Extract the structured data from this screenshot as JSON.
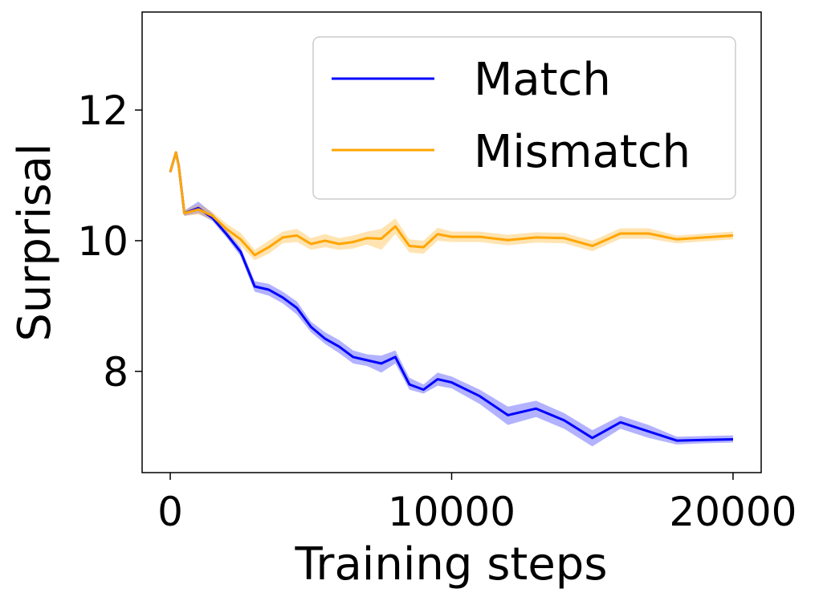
{
  "chart_data": {
    "type": "line",
    "xlabel": "Training steps",
    "ylabel": "Surprisal",
    "xlim": [
      -1000,
      21000
    ],
    "ylim": [
      6.45,
      13.5
    ],
    "xticks": [
      0,
      10000,
      20000
    ],
    "xtick_labels": [
      "0",
      "10000",
      "20000"
    ],
    "yticks": [
      8,
      10,
      12
    ],
    "ytick_labels": [
      "8",
      "10",
      "12"
    ],
    "grid": false,
    "legend_position": "top-right",
    "series": [
      {
        "name": "Match",
        "color": "#0000ff",
        "band_color": "#0000ff",
        "x": [
          0,
          200,
          300,
          500,
          1000,
          1500,
          2000,
          2500,
          3000,
          3500,
          4000,
          4500,
          5000,
          5500,
          6000,
          6500,
          7000,
          7500,
          8000,
          8500,
          9000,
          9500,
          10000,
          11000,
          12000,
          13000,
          14000,
          15000,
          16000,
          17000,
          18000,
          19000,
          20000
        ],
        "y": [
          11.05,
          11.35,
          11.15,
          10.42,
          10.5,
          10.35,
          10.1,
          9.83,
          9.3,
          9.25,
          9.13,
          8.97,
          8.68,
          8.5,
          8.38,
          8.22,
          8.17,
          8.12,
          8.22,
          7.8,
          7.72,
          7.88,
          7.83,
          7.62,
          7.33,
          7.43,
          7.25,
          6.98,
          7.22,
          7.08,
          6.94,
          6.95,
          6.96
        ],
        "lower": [
          11.05,
          11.35,
          11.15,
          10.38,
          10.42,
          10.3,
          10.05,
          9.76,
          9.22,
          9.16,
          9.04,
          8.87,
          8.6,
          8.42,
          8.28,
          8.12,
          8.08,
          7.98,
          8.12,
          7.72,
          7.66,
          7.78,
          7.74,
          7.5,
          7.18,
          7.3,
          7.12,
          6.85,
          7.12,
          6.98,
          6.88,
          6.9,
          6.91
        ],
        "upper": [
          11.05,
          11.35,
          11.15,
          10.46,
          10.6,
          10.42,
          10.16,
          9.9,
          9.38,
          9.34,
          9.22,
          9.07,
          8.76,
          8.6,
          8.48,
          8.32,
          8.26,
          8.24,
          8.32,
          7.9,
          7.8,
          7.98,
          7.92,
          7.72,
          7.46,
          7.55,
          7.36,
          7.1,
          7.32,
          7.18,
          7.0,
          7.01,
          7.02
        ]
      },
      {
        "name": "Mismatch",
        "color": "#ffa500",
        "band_color": "#ffa500",
        "x": [
          0,
          200,
          300,
          500,
          1000,
          1500,
          2000,
          2500,
          3000,
          3500,
          4000,
          4500,
          5000,
          5500,
          6000,
          6500,
          7000,
          7500,
          8000,
          8500,
          9000,
          9500,
          10000,
          11000,
          12000,
          13000,
          14000,
          15000,
          16000,
          17000,
          18000,
          19000,
          20000
        ],
        "y": [
          11.05,
          11.35,
          11.15,
          10.42,
          10.48,
          10.38,
          10.18,
          10.02,
          9.78,
          9.9,
          10.05,
          10.08,
          9.95,
          10.0,
          9.95,
          9.98,
          10.04,
          10.03,
          10.22,
          9.92,
          9.9,
          10.1,
          10.06,
          10.06,
          10.01,
          10.05,
          10.04,
          9.92,
          10.11,
          10.11,
          10.02,
          10.05,
          10.08
        ],
        "lower": [
          11.05,
          11.35,
          11.15,
          10.38,
          10.4,
          10.32,
          10.1,
          9.92,
          9.7,
          9.8,
          9.96,
          9.98,
          9.86,
          9.9,
          9.86,
          9.88,
          9.94,
          9.86,
          10.1,
          9.82,
          9.8,
          10.0,
          9.98,
          9.98,
          9.93,
          9.97,
          9.96,
          9.84,
          10.03,
          10.03,
          9.96,
          9.99,
          10.02
        ],
        "upper": [
          11.05,
          11.35,
          11.15,
          10.46,
          10.56,
          10.44,
          10.26,
          10.12,
          9.86,
          10.0,
          10.14,
          10.18,
          10.04,
          10.1,
          10.04,
          10.08,
          10.14,
          10.18,
          10.34,
          10.02,
          10.0,
          10.2,
          10.14,
          10.14,
          10.09,
          10.13,
          10.12,
          10.0,
          10.19,
          10.19,
          10.08,
          10.11,
          10.14
        ]
      }
    ]
  }
}
